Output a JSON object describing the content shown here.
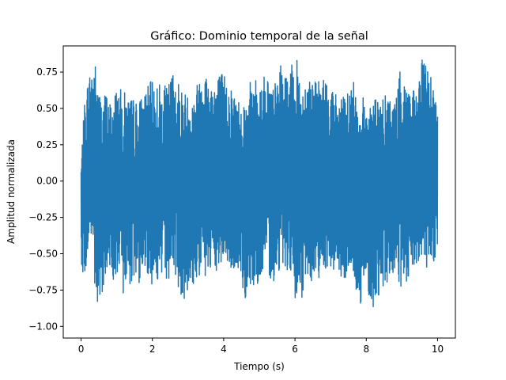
{
  "chart_data": {
    "type": "line",
    "title": "Gráfico: Dominio temporal de la señal",
    "xlabel": "Tiempo (s)",
    "ylabel": "Amplitud normalizada",
    "xlim": [
      -0.5,
      10.5
    ],
    "ylim": [
      -1.08,
      0.93
    ],
    "xticks": [
      0,
      2,
      4,
      6,
      8,
      10
    ],
    "yticks": [
      -1.0,
      -0.75,
      -0.5,
      -0.25,
      0.0,
      0.25,
      0.5,
      0.75
    ],
    "x_tick_labels": [
      "0",
      "2",
      "4",
      "6",
      "8",
      "10"
    ],
    "y_tick_labels": [
      "−1.00",
      "−0.75",
      "−0.50",
      "−0.25",
      "0.00",
      "0.25",
      "0.50",
      "0.75"
    ],
    "grid": false,
    "legend": false,
    "series_color": "#1f77b4",
    "series": [
      {
        "x": [
          0.0,
          0.1,
          0.2,
          0.3,
          0.4,
          0.5,
          0.6,
          0.7,
          0.8,
          0.9,
          1.0,
          1.2,
          1.4,
          1.6,
          1.8,
          2.0,
          2.2,
          2.4,
          2.6,
          2.8,
          3.0,
          3.2,
          3.4,
          3.6,
          3.8,
          4.0,
          4.2,
          4.4,
          4.6,
          4.8,
          5.0,
          5.2,
          5.4,
          5.6,
          5.8,
          6.0,
          6.2,
          6.4,
          6.6,
          6.8,
          7.0,
          7.2,
          7.4,
          7.6,
          7.8,
          8.0,
          8.2,
          8.4,
          8.6,
          8.8,
          9.0,
          9.2,
          9.4,
          9.6,
          9.8,
          10.0
        ],
        "upper": [
          0.15,
          0.55,
          0.72,
          0.8,
          0.82,
          0.65,
          0.58,
          0.62,
          0.55,
          0.6,
          0.65,
          0.62,
          0.58,
          0.55,
          0.63,
          0.7,
          0.68,
          0.65,
          0.78,
          0.66,
          0.6,
          0.62,
          0.85,
          0.7,
          0.75,
          0.75,
          0.66,
          0.58,
          0.58,
          0.72,
          0.7,
          0.75,
          0.65,
          0.8,
          0.7,
          0.88,
          0.7,
          0.75,
          0.68,
          0.72,
          0.65,
          0.6,
          0.58,
          0.7,
          0.62,
          0.55,
          0.6,
          0.56,
          0.6,
          0.57,
          0.82,
          0.66,
          0.6,
          0.88,
          0.78,
          0.52
        ],
        "lower": [
          -0.55,
          -0.7,
          -0.5,
          -0.4,
          -0.85,
          -1.0,
          -0.75,
          -0.65,
          -0.6,
          -0.68,
          -0.72,
          -0.78,
          -0.7,
          -0.72,
          -0.6,
          -0.72,
          -0.68,
          -0.7,
          -0.62,
          -0.8,
          -0.82,
          -0.7,
          -0.66,
          -0.68,
          -0.65,
          -0.55,
          -0.62,
          -0.62,
          -0.82,
          -0.72,
          -0.7,
          -0.6,
          -0.72,
          -0.58,
          -0.62,
          -0.88,
          -0.82,
          -0.68,
          -0.7,
          -0.6,
          -0.6,
          -0.65,
          -0.7,
          -0.62,
          -0.88,
          -0.72,
          -0.9,
          -0.75,
          -0.7,
          -0.65,
          -0.78,
          -0.7,
          -0.6,
          -0.55,
          -0.65,
          -0.48
        ]
      }
    ]
  }
}
